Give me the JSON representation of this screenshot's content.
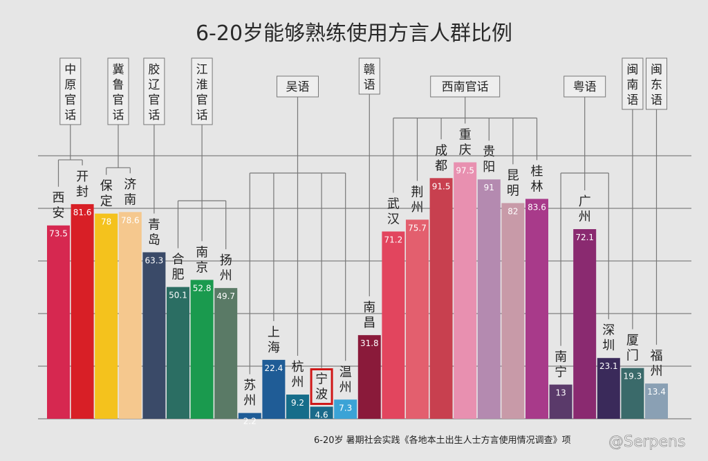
{
  "chart_data": {
    "type": "bar",
    "title": "6-20岁能够熟练使用方言人群比例",
    "ylim": [
      0,
      100
    ],
    "grid": true,
    "source": "6-20岁 暑期社会实践《各地本土出生人士方言使用情况调查》项",
    "watermark": "@Serpens",
    "highlight_category": "宁波",
    "categories": [
      "西安",
      "开封",
      "保定",
      "济南",
      "青岛",
      "合肥",
      "南京",
      "扬州",
      "苏州",
      "上海",
      "杭州",
      "宁波",
      "温州",
      "南昌",
      "武汉",
      "荆州",
      "成都",
      "重庆",
      "贵阳",
      "昆明",
      "桂林",
      "南宁",
      "广州",
      "深圳",
      "厦门",
      "福州"
    ],
    "values": [
      73.5,
      81.6,
      78,
      78.6,
      63.3,
      50.1,
      52.8,
      49.7,
      2.2,
      22.4,
      9.2,
      4.6,
      7.3,
      31.8,
      71.2,
      75.7,
      91.5,
      97.5,
      91,
      82,
      83.6,
      13,
      72.1,
      23.1,
      19.3,
      13.4
    ],
    "colors": [
      "#d62850",
      "#d81f26",
      "#f4c21d",
      "#f5c88e",
      "#3a4a68",
      "#2b6e63",
      "#1a9a4e",
      "#5a7a66",
      "#1f5c96",
      "#1f5c96",
      "#166d8a",
      "#1a6a8a",
      "#3ba3d6",
      "#8a1a3a",
      "#e2455e",
      "#e35f6e",
      "#c8404f",
      "#e890b0",
      "#b48ab0",
      "#c89aa8",
      "#a83a8a",
      "#5a3a6a",
      "#8a2a70",
      "#3a2a5a",
      "#3a6a6a",
      "#8aa0b4"
    ],
    "groups": [
      {
        "name": "中原官话",
        "members": [
          "西安",
          "开封"
        ]
      },
      {
        "name": "冀鲁官话",
        "members": [
          "保定",
          "济南"
        ]
      },
      {
        "name": "胶辽官话",
        "members": [
          "青岛"
        ]
      },
      {
        "name": "江淮官话",
        "members": [
          "合肥",
          "南京",
          "扬州"
        ]
      },
      {
        "name": "吴语",
        "members": [
          "苏州",
          "上海",
          "杭州",
          "宁波",
          "温州"
        ]
      },
      {
        "name": "赣语",
        "members": [
          "南昌"
        ]
      },
      {
        "name": "西南官话",
        "members": [
          "武汉",
          "荆州",
          "成都",
          "重庆",
          "贵阳",
          "昆明",
          "桂林"
        ]
      },
      {
        "name": "粤语",
        "members": [
          "南宁",
          "广州",
          "深圳"
        ]
      },
      {
        "name": "闽南语",
        "members": [
          "厦门"
        ]
      },
      {
        "name": "闽东语",
        "members": [
          "福州"
        ]
      }
    ]
  }
}
